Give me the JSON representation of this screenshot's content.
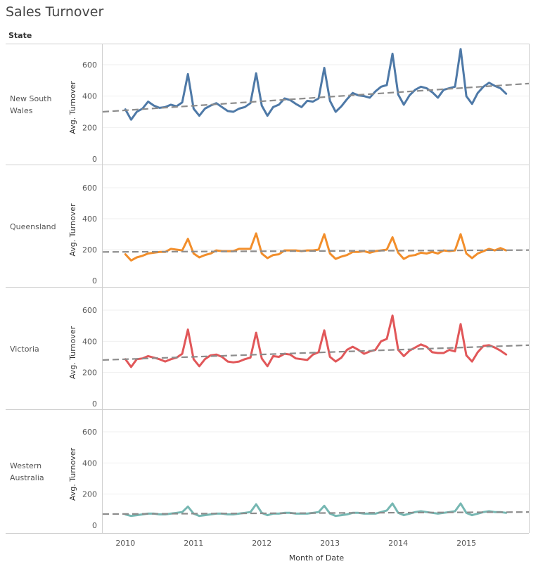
{
  "title": "Sales Turnover",
  "row_header": "State",
  "chart_data": {
    "type": "line",
    "title": "Sales Turnover",
    "xlabel": "Month of Date",
    "ylabel": "Avg. Turnover",
    "x_ticks": [
      "2010",
      "2011",
      "2012",
      "2013",
      "2014",
      "2015"
    ],
    "y_ticks": [
      0,
      200,
      400,
      600
    ],
    "ylim": [
      0,
      700
    ],
    "x_range": [
      "2009-09",
      "2015-12"
    ],
    "grid": true,
    "trend_lines": true,
    "panels": [
      {
        "state": "New South Wales",
        "color": "#4e79a7",
        "start": "2010-01",
        "values": [
          315,
          250,
          300,
          320,
          365,
          340,
          325,
          330,
          345,
          335,
          360,
          540,
          320,
          275,
          320,
          340,
          355,
          330,
          305,
          300,
          320,
          330,
          355,
          545,
          340,
          275,
          330,
          345,
          385,
          375,
          350,
          330,
          370,
          365,
          385,
          580,
          370,
          300,
          335,
          380,
          420,
          405,
          400,
          390,
          430,
          460,
          470,
          670,
          410,
          345,
          405,
          440,
          460,
          450,
          425,
          390,
          440,
          450,
          460,
          700,
          400,
          350,
          420,
          460,
          485,
          465,
          450,
          415
        ],
        "trend": [
          300,
          480
        ]
      },
      {
        "state": "Queensland",
        "color": "#f28e2b",
        "start": "2010-01",
        "values": [
          170,
          130,
          150,
          160,
          175,
          180,
          185,
          185,
          205,
          200,
          195,
          270,
          175,
          150,
          165,
          175,
          195,
          190,
          190,
          190,
          205,
          205,
          205,
          305,
          175,
          145,
          165,
          170,
          195,
          195,
          195,
          190,
          195,
          195,
          200,
          300,
          175,
          140,
          155,
          165,
          185,
          185,
          190,
          180,
          190,
          195,
          200,
          280,
          180,
          140,
          160,
          165,
          180,
          175,
          185,
          175,
          195,
          190,
          195,
          300,
          175,
          145,
          175,
          190,
          205,
          195,
          210,
          195
        ],
        "trend": [
          185,
          197
        ]
      },
      {
        "state": "Victoria",
        "color": "#e15759",
        "start": "2010-01",
        "values": [
          285,
          235,
          285,
          290,
          305,
          295,
          285,
          270,
          285,
          295,
          320,
          475,
          285,
          240,
          285,
          310,
          315,
          300,
          270,
          265,
          270,
          285,
          295,
          455,
          290,
          240,
          305,
          300,
          320,
          315,
          290,
          285,
          280,
          315,
          330,
          470,
          300,
          270,
          295,
          345,
          365,
          345,
          320,
          335,
          345,
          400,
          415,
          565,
          345,
          305,
          340,
          360,
          380,
          365,
          330,
          325,
          325,
          345,
          335,
          510,
          310,
          270,
          330,
          370,
          375,
          360,
          340,
          315
        ],
        "trend": [
          280,
          375
        ]
      },
      {
        "state": "Western Australia",
        "color": "#76b7b2",
        "start": "2010-01",
        "values": [
          70,
          60,
          65,
          70,
          75,
          75,
          70,
          70,
          75,
          80,
          85,
          120,
          75,
          60,
          65,
          70,
          75,
          75,
          70,
          70,
          75,
          80,
          85,
          135,
          80,
          65,
          75,
          75,
          80,
          80,
          75,
          75,
          75,
          80,
          85,
          125,
          75,
          60,
          65,
          70,
          80,
          80,
          75,
          75,
          75,
          85,
          95,
          140,
          80,
          65,
          75,
          85,
          90,
          85,
          80,
          75,
          80,
          85,
          90,
          140,
          80,
          65,
          75,
          85,
          90,
          85,
          85,
          80
        ],
        "trend": [
          72,
          85
        ]
      }
    ]
  }
}
